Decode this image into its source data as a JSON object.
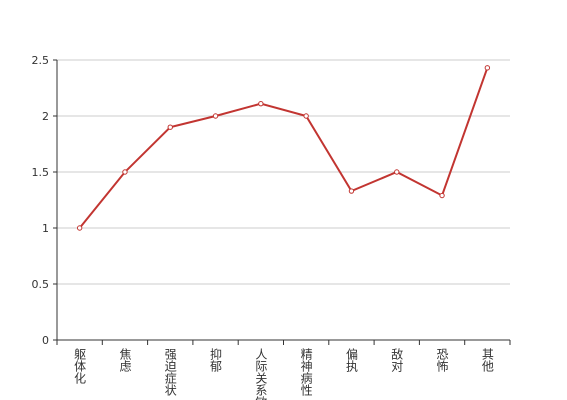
{
  "chart_data": {
    "type": "line",
    "categories": [
      "躯体化",
      "焦虑",
      "强迫症状",
      "抑郁",
      "人际关系敏感",
      "精神病性",
      "偏执",
      "敌对",
      "恐怖",
      "其他"
    ],
    "series": [
      {
        "color": "#c23531",
        "values": [
          1,
          1.5,
          1.9,
          2,
          2.11,
          2,
          1.33,
          1.5,
          1.29,
          2.43
        ]
      }
    ],
    "ylim": [
      0,
      2.5
    ],
    "yticks": [
      0,
      0.5,
      1,
      1.5,
      2,
      2.5
    ],
    "grid": true
  }
}
